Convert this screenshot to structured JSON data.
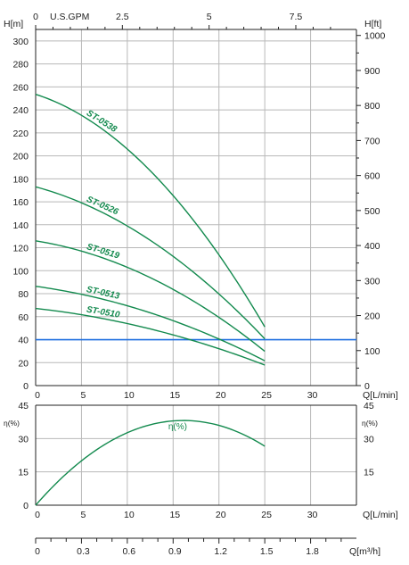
{
  "colors": {
    "curve": "#138a4e",
    "reference_line": "#1f6fe0",
    "grid": "#b8b8b8",
    "axis": "#222222"
  },
  "chart_data": [
    {
      "name": "head-chart",
      "type": "line",
      "x_axis": {
        "label": "Q[L/min]",
        "range": [
          0,
          35
        ],
        "ticks": [
          "0",
          "5",
          "10",
          "15",
          "20",
          "25",
          "30"
        ],
        "tick_values": [
          0,
          5,
          10,
          15,
          20,
          25,
          30
        ]
      },
      "x_axis_top": {
        "label": "U.S.GPM",
        "ticks": [
          "0",
          "2.5",
          "5",
          "7.5"
        ],
        "tick_values": [
          0,
          2.5,
          5,
          7.5
        ],
        "lpm_per_unit": 3.785
      },
      "y_axis_left": {
        "label": "H[m]",
        "range": [
          0,
          310
        ],
        "ticks": [
          "0",
          "20",
          "40",
          "60",
          "80",
          "100",
          "120",
          "140",
          "160",
          "180",
          "200",
          "220",
          "240",
          "260",
          "280",
          "300"
        ],
        "tick_values": [
          0,
          20,
          40,
          60,
          80,
          100,
          120,
          140,
          160,
          180,
          200,
          220,
          240,
          260,
          280,
          300
        ]
      },
      "y_axis_right": {
        "label": "H[ft]",
        "ticks": [
          "0",
          "100",
          "200",
          "300",
          "400",
          "500",
          "600",
          "700",
          "800",
          "900",
          "1000"
        ],
        "tick_values": [
          0,
          100,
          200,
          300,
          400,
          500,
          600,
          700,
          800,
          900,
          1000
        ],
        "ft_per_m": 3.281
      },
      "grid": true,
      "reference_line": {
        "y": 40
      },
      "series": [
        {
          "name": "ST-0538",
          "x": [
            0,
            5,
            10,
            15,
            20,
            25
          ],
          "y": [
            253,
            236,
            206,
            166,
            112,
            52
          ]
        },
        {
          "name": "ST-0526",
          "x": [
            0,
            5,
            10,
            15,
            20,
            25
          ],
          "y": [
            173,
            159,
            139,
            113,
            79,
            41
          ]
        },
        {
          "name": "ST-0519",
          "x": [
            0,
            5,
            10,
            15,
            20,
            25
          ],
          "y": [
            126,
            117,
            103,
            84,
            59,
            30
          ]
        },
        {
          "name": "ST-0513",
          "x": [
            0,
            5,
            10,
            15,
            20,
            25
          ],
          "y": [
            86,
            80,
            70,
            56,
            40,
            22
          ]
        },
        {
          "name": "ST-0510",
          "x": [
            0,
            5,
            10,
            15,
            20,
            25
          ],
          "y": [
            67,
            62,
            54,
            44,
            32,
            18
          ]
        }
      ]
    },
    {
      "name": "efficiency-chart",
      "type": "line",
      "x_axis": {
        "label": "Q[L/min]",
        "range": [
          0,
          35
        ],
        "ticks": [
          "0",
          "5",
          "10",
          "15",
          "20",
          "25",
          "30"
        ],
        "tick_values": [
          0,
          5,
          10,
          15,
          20,
          25,
          30
        ]
      },
      "y_axis_left": {
        "label": "η(%)",
        "range": [
          0,
          45
        ],
        "ticks": [
          "0",
          "15",
          "30",
          "45"
        ],
        "tick_values": [
          0,
          15,
          30,
          45
        ]
      },
      "y_axis_right": {
        "label": "η(%)",
        "ticks": [
          "15",
          "30",
          "45"
        ],
        "tick_values": [
          15,
          30,
          45
        ]
      },
      "grid": true,
      "series": [
        {
          "name": "η(%)",
          "x": [
            0,
            5,
            10,
            15,
            20,
            25
          ],
          "y": [
            0,
            20,
            32.5,
            38,
            36,
            26.5
          ]
        }
      ]
    },
    {
      "name": "flow-axis-m3h",
      "type": "axis",
      "x_axis": {
        "label": "Q[m³/h]",
        "ticks": [
          "0",
          "0.3",
          "0.6",
          "0.9",
          "1.2",
          "1.5",
          "1.8"
        ],
        "tick_values": [
          0,
          0.3,
          0.6,
          0.9,
          1.2,
          1.5,
          1.8
        ],
        "lpm_per_unit": 16.667
      }
    }
  ]
}
